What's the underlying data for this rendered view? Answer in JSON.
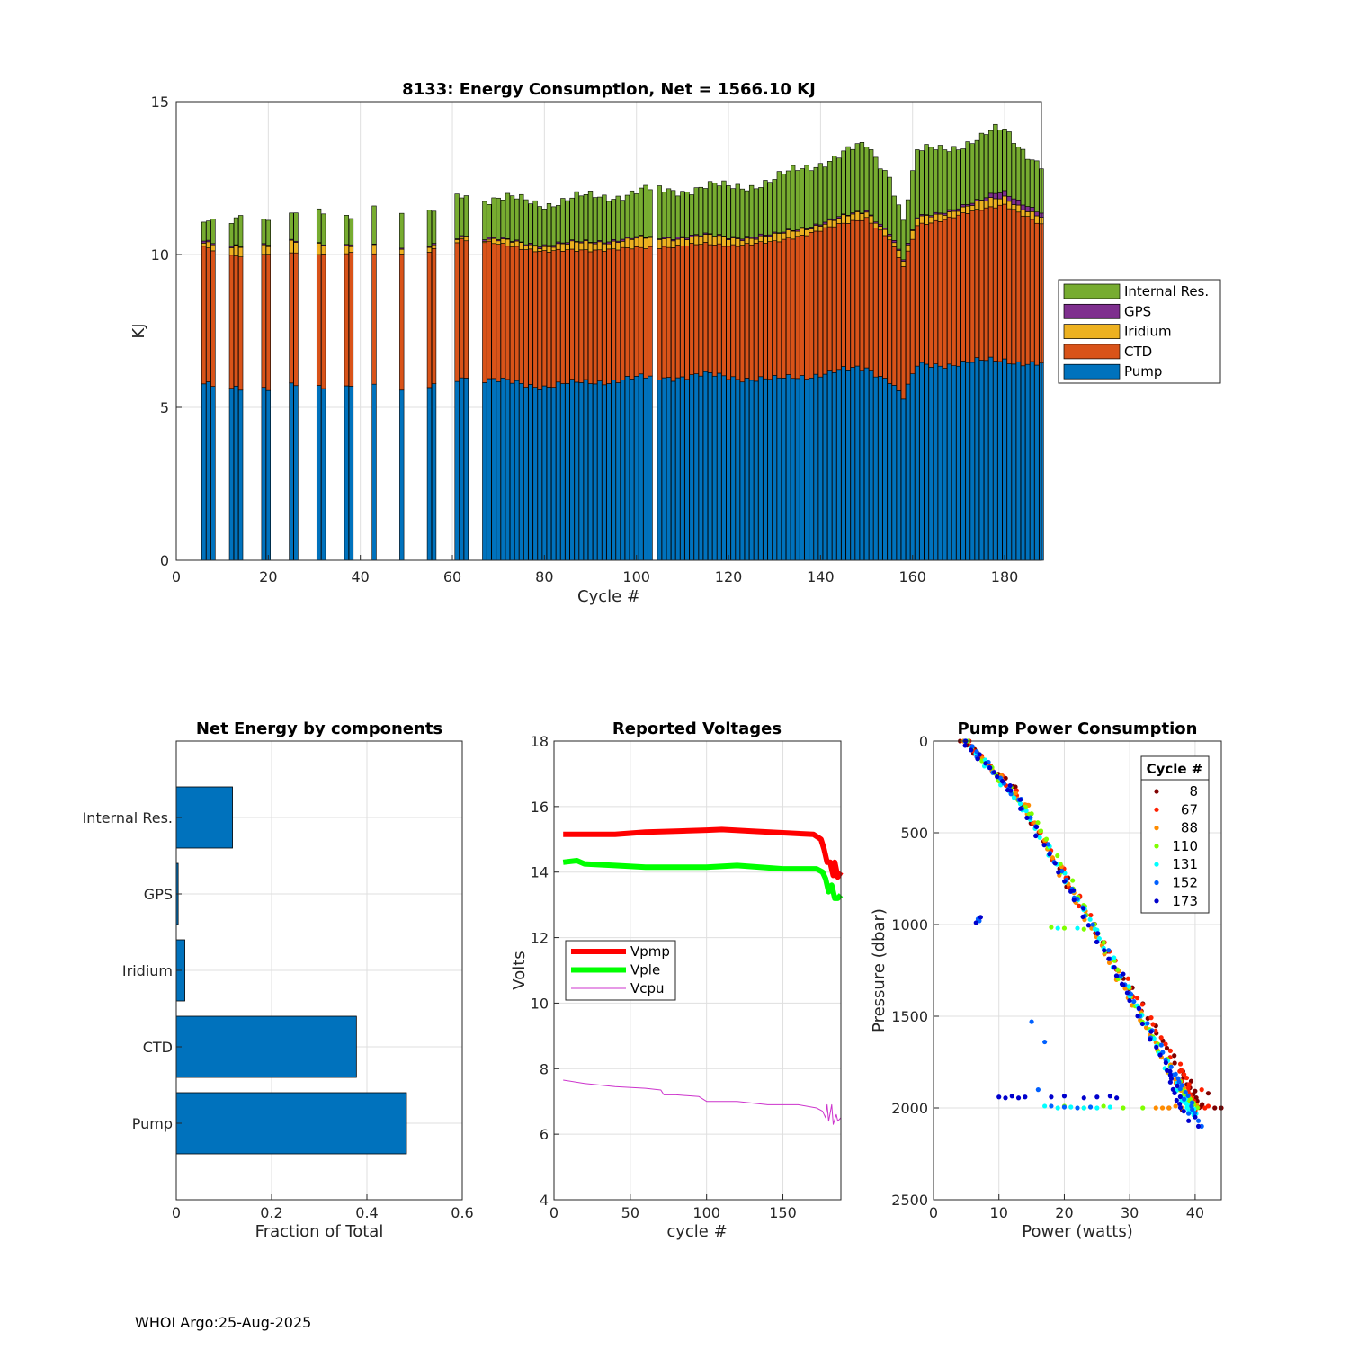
{
  "footer": "WHOI Argo:25-Aug-2025",
  "chart_data": [
    {
      "id": "energy",
      "type": "bar",
      "stacked": true,
      "title": "8133: Energy Consumption,  Net = 1566.10 KJ",
      "xlabel": "Cycle #",
      "ylabel": "KJ",
      "xlim": [
        0,
        188
      ],
      "ylim": [
        0,
        15
      ],
      "xticks": [
        0,
        20,
        40,
        60,
        80,
        100,
        120,
        140,
        160,
        180
      ],
      "yticks": [
        0,
        5,
        10,
        15
      ],
      "legend_location": "outside-right",
      "legend_order": [
        "Internal Res.",
        "GPS",
        "Iridium",
        "CTD",
        "Pump"
      ],
      "series_colors": {
        "Pump": "#0072BD",
        "CTD": "#D95319",
        "Iridium": "#EDB120",
        "GPS": "#7E2F8E",
        "Internal Res.": "#77AC30"
      },
      "cycle_groups": [
        [
          6,
          8
        ],
        [
          12,
          14
        ],
        [
          19,
          20
        ],
        [
          25,
          26
        ],
        [
          31,
          32
        ],
        [
          37,
          38
        ],
        [
          43,
          43
        ],
        [
          49,
          49
        ],
        [
          55,
          56
        ],
        [
          61,
          63
        ],
        [
          67,
          103
        ],
        [
          105,
          188
        ]
      ],
      "series_profile": {
        "Pump": {
          "knots": [
            [
              6,
              5.85
            ],
            [
              12,
              5.55
            ],
            [
              20,
              5.7
            ],
            [
              40,
              5.75
            ],
            [
              55,
              5.65
            ],
            [
              62,
              6.0
            ],
            [
              67,
              5.9
            ],
            [
              80,
              5.7
            ],
            [
              100,
              5.95
            ],
            [
              115,
              6.05
            ],
            [
              130,
              5.9
            ],
            [
              150,
              6.3
            ],
            [
              155,
              5.9
            ],
            [
              158,
              5.3
            ],
            [
              161,
              6.35
            ],
            [
              180,
              6.55
            ],
            [
              188,
              6.4
            ]
          ],
          "jitter": 0.15
        },
        "CTD": {
          "knots": [
            [
              6,
              4.4
            ],
            [
              20,
              4.35
            ],
            [
              40,
              4.3
            ],
            [
              62,
              4.5
            ],
            [
              67,
              4.5
            ],
            [
              80,
              4.4
            ],
            [
              100,
              4.25
            ],
            [
              120,
              4.3
            ],
            [
              140,
              4.7
            ],
            [
              150,
              4.9
            ],
            [
              155,
              4.6
            ],
            [
              158,
              4.3
            ],
            [
              161,
              4.6
            ],
            [
              180,
              5.1
            ],
            [
              188,
              4.55
            ]
          ],
          "jitter": 0.12
        },
        "Iridium": {
          "knots": [
            [
              6,
              0.2
            ],
            [
              25,
              0.35
            ],
            [
              60,
              0.1
            ],
            [
              67,
              0.1
            ],
            [
              100,
              0.3
            ],
            [
              130,
              0.2
            ],
            [
              160,
              0.2
            ],
            [
              188,
              0.25
            ]
          ],
          "jitter": 0.1
        },
        "GPS": {
          "knots": [
            [
              6,
              0.04
            ],
            [
              150,
              0.04
            ],
            [
              175,
              0.06
            ],
            [
              178,
              0.2
            ],
            [
              188,
              0.12
            ]
          ],
          "jitter": 0.03
        },
        "Internal Res.": {
          "knots": [
            [
              6,
              0.8
            ],
            [
              12,
              0.8
            ],
            [
              20,
              0.8
            ],
            [
              40,
              1.0
            ],
            [
              55,
              1.1
            ],
            [
              62,
              1.3
            ],
            [
              67,
              1.3
            ],
            [
              100,
              1.5
            ],
            [
              120,
              1.6
            ],
            [
              140,
              2.0
            ],
            [
              150,
              2.1
            ],
            [
              155,
              1.9
            ],
            [
              158,
              1.3
            ],
            [
              161,
              2.1
            ],
            [
              180,
              2.0
            ],
            [
              188,
              1.6
            ]
          ],
          "jitter": 0.25
        }
      }
    },
    {
      "id": "components",
      "type": "bar",
      "orientation": "horizontal",
      "title": "Net Energy by components",
      "xlabel": "Fraction of Total",
      "ylabel": "",
      "xlim": [
        0,
        0.6
      ],
      "xticks": [
        "0",
        "0.2",
        "0.4",
        "0.6"
      ],
      "categories": [
        "Internal Res.",
        "GPS",
        "Iridium",
        "CTD",
        "Pump"
      ],
      "values": [
        0.118,
        0.004,
        0.018,
        0.378,
        0.483
      ],
      "color": "#0072BD"
    },
    {
      "id": "voltages",
      "type": "line",
      "title": "Reported Voltages",
      "xlabel": "cycle #",
      "ylabel": "Volts",
      "xlim": [
        0,
        188
      ],
      "ylim": [
        4,
        18
      ],
      "xticks": [
        0,
        50,
        100,
        150
      ],
      "yticks": [
        4,
        6,
        8,
        10,
        12,
        14,
        16,
        18
      ],
      "legend_location": "west",
      "series": [
        {
          "name": "Vpmp",
          "color": "#FF0000",
          "width": "thick",
          "points": [
            [
              6,
              15.15
            ],
            [
              20,
              15.15
            ],
            [
              40,
              15.15
            ],
            [
              60,
              15.22
            ],
            [
              80,
              15.25
            ],
            [
              100,
              15.28
            ],
            [
              110,
              15.3
            ],
            [
              130,
              15.25
            ],
            [
              150,
              15.2
            ],
            [
              170,
              15.15
            ],
            [
              175,
              15.0
            ],
            [
              177,
              14.7
            ],
            [
              179,
              14.3
            ],
            [
              181,
              14.3
            ],
            [
              183,
              13.9
            ],
            [
              184,
              14.3
            ],
            [
              186,
              13.85
            ],
            [
              188,
              14.0
            ]
          ]
        },
        {
          "name": "Vple",
          "color": "#00FF00",
          "width": "thick",
          "points": [
            [
              6,
              14.3
            ],
            [
              15,
              14.35
            ],
            [
              20,
              14.25
            ],
            [
              40,
              14.2
            ],
            [
              60,
              14.15
            ],
            [
              80,
              14.15
            ],
            [
              100,
              14.15
            ],
            [
              120,
              14.2
            ],
            [
              150,
              14.1
            ],
            [
              172,
              14.1
            ],
            [
              176,
              14.0
            ],
            [
              178,
              13.8
            ],
            [
              180,
              13.4
            ],
            [
              182,
              13.6
            ],
            [
              184,
              13.2
            ],
            [
              186,
              13.2
            ],
            [
              188,
              13.3
            ]
          ]
        },
        {
          "name": "Vcpu",
          "color": "#CC33CC",
          "width": "thin",
          "points": [
            [
              6,
              7.65
            ],
            [
              20,
              7.55
            ],
            [
              40,
              7.45
            ],
            [
              60,
              7.4
            ],
            [
              70,
              7.35
            ],
            [
              72,
              7.2
            ],
            [
              80,
              7.2
            ],
            [
              95,
              7.15
            ],
            [
              100,
              7.0
            ],
            [
              120,
              7.0
            ],
            [
              140,
              6.9
            ],
            [
              160,
              6.9
            ],
            [
              172,
              6.8
            ],
            [
              176,
              6.7
            ],
            [
              178,
              6.5
            ],
            [
              179,
              6.9
            ],
            [
              180,
              6.4
            ],
            [
              182,
              6.9
            ],
            [
              183,
              6.3
            ],
            [
              185,
              6.6
            ],
            [
              186,
              6.4
            ],
            [
              188,
              6.5
            ]
          ]
        }
      ]
    },
    {
      "id": "pump_power",
      "type": "scatter",
      "title": "Pump Power Consumption",
      "xlabel": "Power (watts)",
      "ylabel": "Pressure (dbar)",
      "xlim": [
        0,
        44
      ],
      "ylim": [
        0,
        2500
      ],
      "y_reversed": true,
      "xticks": [
        0,
        10,
        20,
        30,
        40
      ],
      "yticks": [
        0,
        500,
        1000,
        1500,
        2000,
        2500
      ],
      "legend_title": "Cycle #",
      "legend_location": "top-right",
      "series": [
        {
          "name": "8",
          "color": "#800000",
          "band": [
            [
              4.5,
              0
            ],
            [
              12,
              250
            ],
            [
              21,
              800
            ],
            [
              30,
              1350
            ],
            [
              38,
              1800
            ],
            [
              41,
              2000
            ]
          ],
          "extra": [
            [
              36,
              2000
            ],
            [
              38,
              2010
            ],
            [
              40,
              2015
            ],
            [
              41,
              1990
            ],
            [
              42,
              1920
            ],
            [
              43,
              2000
            ],
            [
              44,
              2000
            ]
          ]
        },
        {
          "name": "67",
          "color": "#FF2000",
          "band": [
            [
              5,
              0
            ],
            [
              13,
              300
            ],
            [
              22,
              850
            ],
            [
              31,
              1400
            ],
            [
              38,
              1800
            ],
            [
              40,
              2000
            ]
          ],
          "extra": [
            [
              41,
              1900
            ],
            [
              42,
              1990
            ],
            [
              40,
              2010
            ],
            [
              41.5,
              2000
            ]
          ]
        },
        {
          "name": "88",
          "color": "#FF8C00",
          "band": [
            [
              5,
              0
            ],
            [
              14,
              350
            ],
            [
              22,
              880
            ],
            [
              30,
              1400
            ],
            [
              37,
              1850
            ],
            [
              40,
              2000
            ]
          ],
          "extra": [
            [
              34,
              2000
            ],
            [
              35,
              2000
            ],
            [
              36,
              2000
            ],
            [
              37,
              1990
            ],
            [
              38,
              2000
            ]
          ]
        },
        {
          "name": "110",
          "color": "#7FFF00",
          "band": [
            [
              5,
              0
            ],
            [
              15,
              400
            ],
            [
              23,
              900
            ],
            [
              31,
              1450
            ],
            [
              38,
              1900
            ],
            [
              40,
              2000
            ]
          ],
          "extra": [
            [
              20,
              1990
            ],
            [
              23,
              2000
            ],
            [
              26,
              1990
            ],
            [
              29,
              2000
            ],
            [
              32,
              2000
            ],
            [
              18,
              1015
            ],
            [
              20,
              1020
            ],
            [
              23,
              1025
            ]
          ]
        },
        {
          "name": "131",
          "color": "#00FFFF",
          "band": [
            [
              5,
              0
            ],
            [
              14,
              380
            ],
            [
              23,
              920
            ],
            [
              32,
              1500
            ],
            [
              38,
              1950
            ],
            [
              40,
              2040
            ]
          ],
          "extra": [
            [
              17,
              1990
            ],
            [
              19,
              2000
            ],
            [
              21,
              1995
            ],
            [
              23,
              2000
            ],
            [
              25,
              2000
            ],
            [
              27,
              1995
            ],
            [
              19,
              1020
            ],
            [
              22,
              1020
            ],
            [
              25,
              1030
            ]
          ]
        },
        {
          "name": "152",
          "color": "#0060FF",
          "band": [
            [
              5,
              0
            ],
            [
              13,
              320
            ],
            [
              22,
              860
            ],
            [
              30,
              1380
            ],
            [
              37,
              1820
            ],
            [
              40,
              2030
            ]
          ],
          "extra": [
            [
              15,
              1530
            ],
            [
              16,
              1900
            ],
            [
              17,
              1640
            ],
            [
              18,
              1990
            ],
            [
              20,
              1995
            ],
            [
              22,
              2000
            ],
            [
              24,
              1995
            ],
            [
              7,
              980
            ],
            [
              6.8,
              970
            ],
            [
              39,
              2030
            ],
            [
              40.5,
              2070
            ],
            [
              41,
              2100
            ]
          ]
        },
        {
          "name": "173",
          "color": "#0000CD",
          "band": [
            [
              4.5,
              0
            ],
            [
              12,
              270
            ],
            [
              21,
              820
            ],
            [
              29,
              1330
            ],
            [
              36,
              1800
            ],
            [
              38,
              2020
            ]
          ],
          "extra": [
            [
              10,
              1940
            ],
            [
              11,
              1945
            ],
            [
              12,
              1935
            ],
            [
              13,
              1945
            ],
            [
              14,
              1940
            ],
            [
              18,
              1940
            ],
            [
              20,
              1935
            ],
            [
              23,
              1945
            ],
            [
              25,
              1940
            ],
            [
              27,
              1935
            ],
            [
              28,
              1945
            ],
            [
              28,
              1280
            ],
            [
              29,
              1270
            ],
            [
              6.5,
              990
            ],
            [
              7.2,
              960
            ],
            [
              40,
              2050
            ],
            [
              40.5,
              2100
            ],
            [
              39,
              2070
            ]
          ]
        }
      ]
    }
  ]
}
